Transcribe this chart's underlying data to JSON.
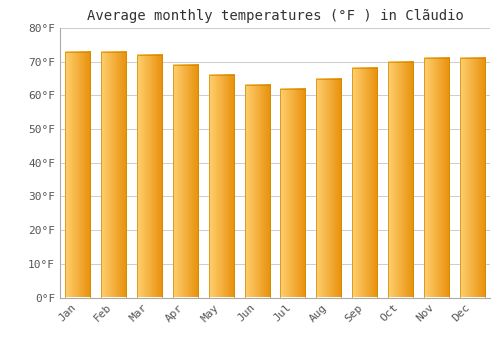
{
  "title": "Average monthly temperatures (°F ) in Clãudio",
  "months": [
    "Jan",
    "Feb",
    "Mar",
    "Apr",
    "May",
    "Jun",
    "Jul",
    "Aug",
    "Sep",
    "Oct",
    "Nov",
    "Dec"
  ],
  "values": [
    73,
    73,
    72,
    69,
    66,
    63,
    62,
    65,
    68,
    70,
    71,
    71
  ],
  "bar_color_left": "#FFD966",
  "bar_color_right": "#F0A500",
  "ylim": [
    0,
    80
  ],
  "yticks": [
    0,
    10,
    20,
    30,
    40,
    50,
    60,
    70,
    80
  ],
  "ytick_labels": [
    "0°F",
    "10°F",
    "20°F",
    "30°F",
    "40°F",
    "50°F",
    "60°F",
    "70°F",
    "80°F"
  ],
  "background_color": "#FFFFFF",
  "grid_color": "#CCCCCC",
  "title_fontsize": 10,
  "tick_fontsize": 8
}
